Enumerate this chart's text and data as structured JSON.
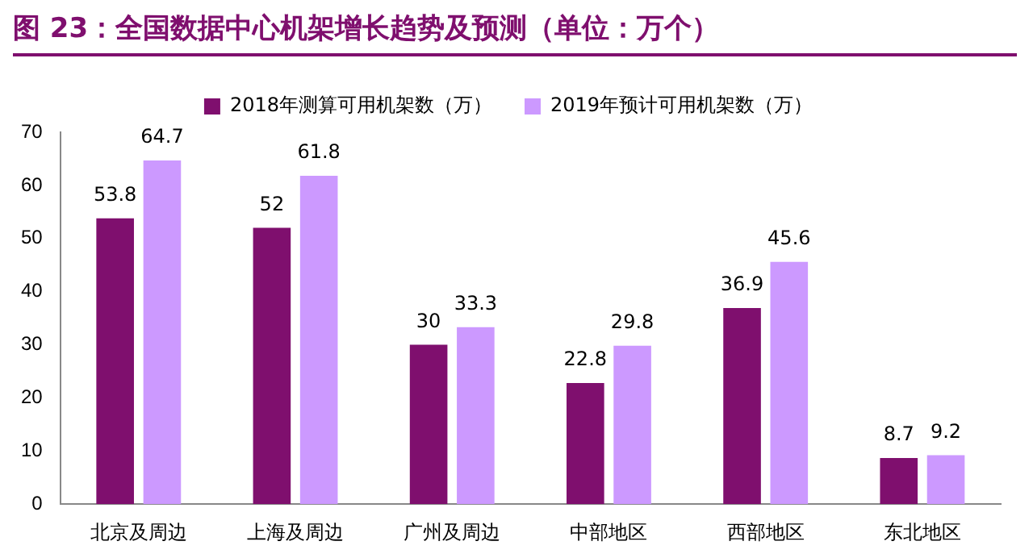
{
  "chart_data": {
    "type": "bar",
    "title": "图 23：全国数据中心机架增长趋势及预测（单位：万个）",
    "categories": [
      "北京及周边",
      "上海及周边",
      "广州及周边",
      "中部地区",
      "西部地区",
      "东北地区"
    ],
    "series": [
      {
        "name": "2018年测算可用机架数（万）",
        "color": "#7f0f6e",
        "values": [
          53.8,
          52,
          30,
          22.8,
          36.9,
          8.7
        ]
      },
      {
        "name": "2019年预计可用机架数（万）",
        "color": "#cc99ff",
        "values": [
          64.7,
          61.8,
          33.3,
          29.8,
          45.6,
          9.2
        ]
      }
    ],
    "ylim": [
      0,
      70
    ],
    "yticks": [
      0,
      10,
      20,
      30,
      40,
      50,
      60,
      70
    ],
    "grid": false,
    "legend": "top",
    "data_labels": true
  }
}
